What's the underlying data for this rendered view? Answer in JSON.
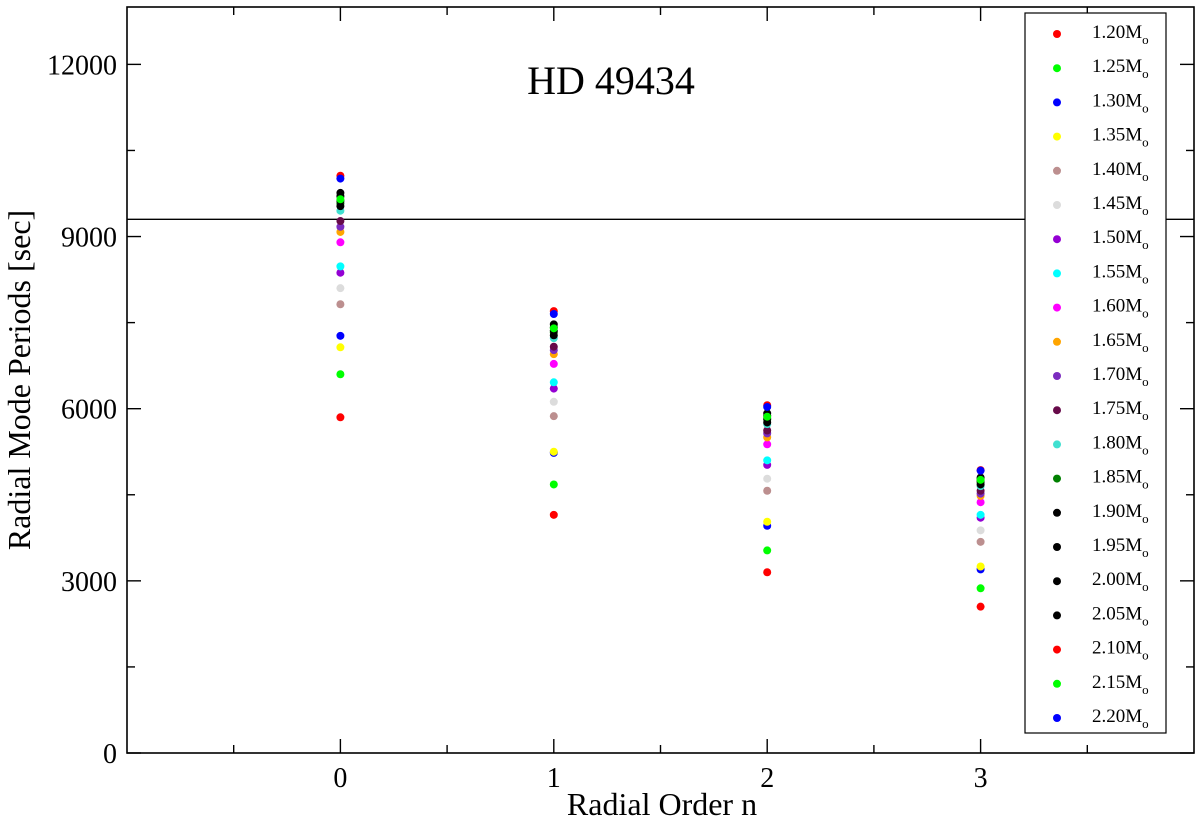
{
  "chart_data": {
    "type": "scatter",
    "title": "HD 49434",
    "xlabel": "Radial Order n",
    "ylabel": "Radial Mode Periods [sec]",
    "xlim": [
      -1,
      4
    ],
    "ylim": [
      0,
      13000
    ],
    "x_ticks": [
      0,
      1,
      2,
      3
    ],
    "y_ticks": [
      0,
      3000,
      6000,
      9000,
      12000
    ],
    "grid": false,
    "legend_position": "top-right",
    "reference_line": {
      "y": 9300
    },
    "series": [
      {
        "name": "1.20M",
        "color": "#ff0000",
        "x": [
          0,
          1,
          2,
          3
        ],
        "y": [
          5850,
          4150,
          3150,
          2550
        ]
      },
      {
        "name": "1.25M",
        "color": "#00ff00",
        "x": [
          0,
          1,
          2,
          3
        ],
        "y": [
          6600,
          4680,
          3530,
          2870
        ]
      },
      {
        "name": "1.30M",
        "color": "#0000ff",
        "x": [
          0,
          1,
          2,
          3
        ],
        "y": [
          7270,
          5230,
          3960,
          3200
        ]
      },
      {
        "name": "1.35M",
        "color": "#ffff00",
        "x": [
          0,
          1,
          2,
          3
        ],
        "y": [
          7070,
          5250,
          4030,
          3250
        ]
      },
      {
        "name": "1.40M",
        "color": "#bc8f8f",
        "x": [
          0,
          1,
          2,
          3
        ],
        "y": [
          7820,
          5870,
          4570,
          3680
        ]
      },
      {
        "name": "1.45M",
        "color": "#dcdcdc",
        "x": [
          0,
          1,
          2,
          3
        ],
        "y": [
          8100,
          6120,
          4780,
          3880
        ]
      },
      {
        "name": "1.50M",
        "color": "#9400d3",
        "x": [
          0,
          1,
          2,
          3
        ],
        "y": [
          8370,
          6350,
          5020,
          4100
        ]
      },
      {
        "name": "1.55M",
        "color": "#00ffff",
        "x": [
          0,
          1,
          2,
          3
        ],
        "y": [
          8480,
          6460,
          5100,
          4150
        ]
      },
      {
        "name": "1.60M",
        "color": "#ff00ff",
        "x": [
          0,
          1,
          2,
          3
        ],
        "y": [
          8900,
          6780,
          5380,
          4370
        ]
      },
      {
        "name": "1.65M",
        "color": "#ffa500",
        "x": [
          0,
          1,
          2,
          3
        ],
        "y": [
          9080,
          6950,
          5500,
          4480
        ]
      },
      {
        "name": "1.70M",
        "color": "#7b2cbf",
        "x": [
          0,
          1,
          2,
          3
        ],
        "y": [
          9170,
          7020,
          5570,
          4520
        ]
      },
      {
        "name": "1.75M",
        "color": "#670a4a",
        "x": [
          0,
          1,
          2,
          3
        ],
        "y": [
          9270,
          7080,
          5620,
          4570
        ]
      },
      {
        "name": "1.80M",
        "color": "#40e0d0",
        "x": [
          0,
          1,
          2,
          3
        ],
        "y": [
          9450,
          7230,
          5730,
          4650
        ]
      },
      {
        "name": "1.85M",
        "color": "#008000",
        "x": [
          0,
          1,
          2,
          3
        ],
        "y": [
          9580,
          7330,
          5810,
          4720
        ]
      },
      {
        "name": "1.90M",
        "color": "#000000",
        "x": [
          0,
          1,
          2,
          3
        ],
        "y": [
          9530,
          7280,
          5760,
          4680
        ]
      },
      {
        "name": "1.95M",
        "color": "#000000",
        "x": [
          0,
          1,
          2,
          3
        ],
        "y": [
          9620,
          7360,
          5830,
          4740
        ]
      },
      {
        "name": "2.00M",
        "color": "#000000",
        "x": [
          0,
          1,
          2,
          3
        ],
        "y": [
          9700,
          7420,
          5880,
          4780
        ]
      },
      {
        "name": "2.05M",
        "color": "#000000",
        "x": [
          0,
          1,
          2,
          3
        ],
        "y": [
          9760,
          7470,
          5920,
          4800
        ]
      },
      {
        "name": "2.10M",
        "color": "#ff0000",
        "x": [
          0,
          1,
          2,
          3
        ],
        "y": [
          10060,
          7700,
          6060,
          4930
        ]
      },
      {
        "name": "2.15M",
        "color": "#00ff00",
        "x": [
          0,
          1,
          2,
          3
        ],
        "y": [
          9650,
          7400,
          5860,
          4760
        ]
      },
      {
        "name": "2.20M",
        "color": "#0000ff",
        "x": [
          0,
          1,
          2,
          3
        ],
        "y": [
          10010,
          7650,
          6030,
          4920
        ]
      }
    ],
    "legend_subscript": "o"
  }
}
